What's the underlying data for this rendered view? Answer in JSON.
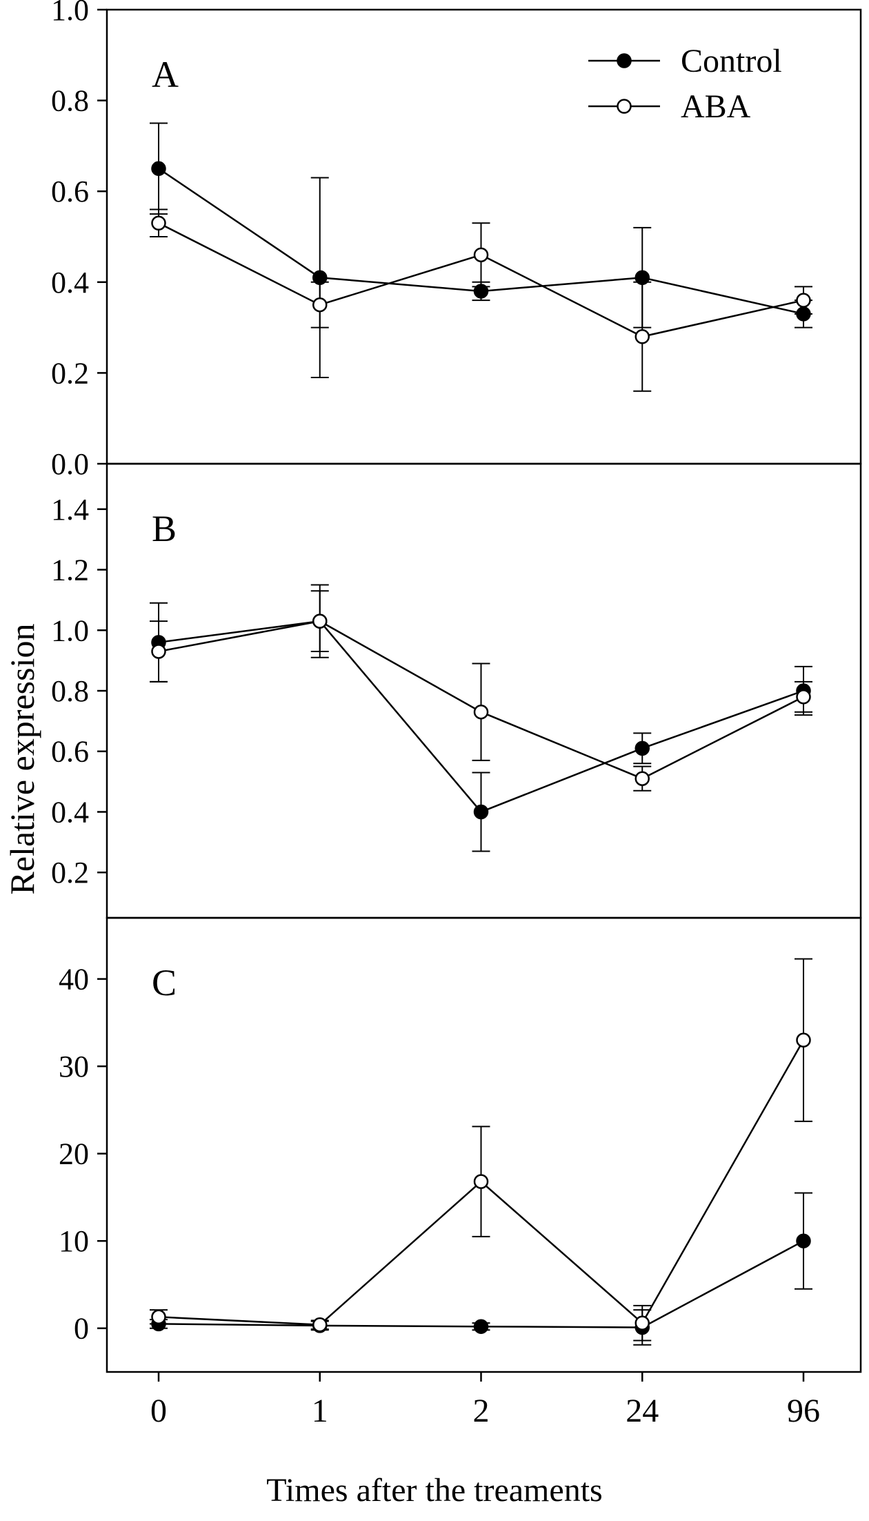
{
  "chart_data": {
    "type": "line",
    "title": "",
    "xlabel": "Times after the treaments",
    "ylabel": "Relative expression",
    "x_categories": [
      "0",
      "1",
      "2",
      "24",
      "96"
    ],
    "grid": false,
    "legend_position": "top-right-of-panel-A",
    "legend": [
      {
        "name": "Control",
        "marker": "filled"
      },
      {
        "name": "ABA",
        "marker": "open"
      }
    ],
    "panels": [
      {
        "label": "A",
        "ylim": [
          0.0,
          1.0
        ],
        "yticks": [
          0.0,
          0.2,
          0.4,
          0.6,
          0.8,
          1.0
        ],
        "ytick_labels": [
          "0.0",
          "0.2",
          "0.4",
          "0.6",
          "0.8",
          "1.0"
        ],
        "series": [
          {
            "name": "Control",
            "marker": "filled",
            "values": [
              0.65,
              0.41,
              0.38,
              0.41,
              0.33
            ],
            "errors": [
              0.1,
              0.22,
              0.02,
              0.11,
              0.03
            ]
          },
          {
            "name": "ABA",
            "marker": "open",
            "values": [
              0.53,
              0.35,
              0.46,
              0.28,
              0.36
            ],
            "errors": [
              0.03,
              0.05,
              0.07,
              0.12,
              0.03
            ]
          }
        ]
      },
      {
        "label": "B",
        "ylim": [
          0.05,
          1.55
        ],
        "yticks": [
          0.2,
          0.4,
          0.6,
          0.8,
          1.0,
          1.2,
          1.4
        ],
        "ytick_labels": [
          "0.2",
          "0.4",
          "0.6",
          "0.8",
          "1.0",
          "1.2",
          "1.4"
        ],
        "series": [
          {
            "name": "Control",
            "marker": "filled",
            "values": [
              0.96,
              1.03,
              0.4,
              0.61,
              0.8
            ],
            "errors": [
              0.13,
              0.1,
              0.13,
              0.05,
              0.08
            ]
          },
          {
            "name": "ABA",
            "marker": "open",
            "values": [
              0.93,
              1.03,
              0.73,
              0.51,
              0.78
            ],
            "errors": [
              0.1,
              0.12,
              0.16,
              0.04,
              0.05
            ]
          }
        ]
      },
      {
        "label": "C",
        "ylim": [
          -5,
          47
        ],
        "yticks": [
          0,
          10,
          20,
          30,
          40
        ],
        "ytick_labels": [
          "0",
          "10",
          "20",
          "30",
          "40"
        ],
        "series": [
          {
            "name": "Control",
            "marker": "filled",
            "values": [
              0.5,
              0.3,
              0.2,
              0.1,
              10.0
            ],
            "errors": [
              0.5,
              0.5,
              0.4,
              2.0,
              5.5
            ]
          },
          {
            "name": "ABA",
            "marker": "open",
            "values": [
              1.3,
              0.4,
              16.8,
              0.6,
              33.0
            ],
            "errors": [
              0.8,
              0.5,
              6.3,
              2.0,
              9.3
            ]
          }
        ]
      }
    ]
  }
}
